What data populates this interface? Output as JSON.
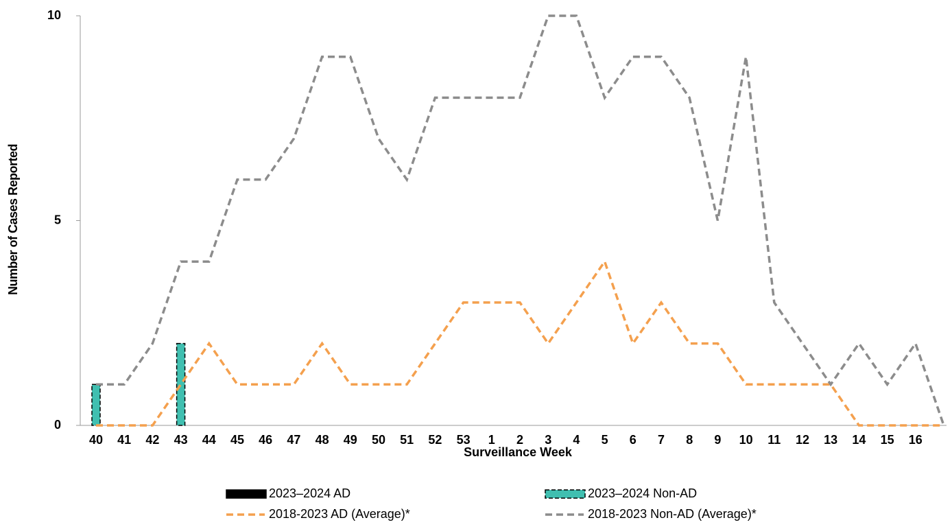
{
  "chart_data": {
    "type": "combo",
    "x_label": "Surveillance Week",
    "y_label": "Number of Cases Reported",
    "categories": [
      "40",
      "41",
      "42",
      "43",
      "44",
      "45",
      "46",
      "47",
      "48",
      "49",
      "50",
      "51",
      "52",
      "53",
      "1",
      "2",
      "3",
      "4",
      "5",
      "6",
      "7",
      "8",
      "9",
      "10",
      "11",
      "12",
      "13",
      "14",
      "15",
      "16",
      null
    ],
    "ylim": [
      0,
      10
    ],
    "yticks": [
      0,
      5,
      10
    ],
    "series": [
      {
        "name": "2023–2024 AD",
        "type": "bar",
        "color": "#000000",
        "values": [
          0,
          0,
          0,
          0,
          0,
          0,
          0,
          0,
          0,
          0,
          0,
          0,
          0,
          0,
          0,
          0,
          0,
          0,
          0,
          0,
          0,
          0,
          0,
          0,
          0,
          0,
          0,
          0,
          0,
          0,
          0
        ]
      },
      {
        "name": "2023–2024 Non-AD",
        "type": "bar",
        "color": "#40bfb0",
        "values": [
          1,
          0,
          0,
          2,
          0,
          0,
          0,
          0,
          0,
          0,
          0,
          0,
          0,
          0,
          0,
          0,
          0,
          0,
          0,
          0,
          0,
          0,
          0,
          0,
          0,
          0,
          0,
          0,
          0,
          0,
          0
        ]
      },
      {
        "name": "2018-2023 AD (Average)*",
        "type": "line",
        "color": "#f4a04e",
        "values": [
          0,
          0,
          0,
          1,
          2,
          1,
          1,
          1,
          2,
          1,
          1,
          1,
          2,
          3,
          3,
          3,
          2,
          3,
          4,
          2,
          3,
          2,
          2,
          1,
          1,
          1,
          1,
          0,
          0,
          0,
          0
        ]
      },
      {
        "name": "2018-2023 Non-AD (Average)*",
        "type": "line",
        "color": "#8c8c8c",
        "values": [
          1,
          1,
          2,
          4,
          4,
          6,
          6,
          7,
          9,
          9,
          7,
          6,
          8,
          8,
          8,
          8,
          10,
          10,
          8,
          9,
          9,
          8,
          5,
          9,
          3,
          2,
          1,
          2,
          1,
          2,
          0
        ]
      }
    ]
  }
}
